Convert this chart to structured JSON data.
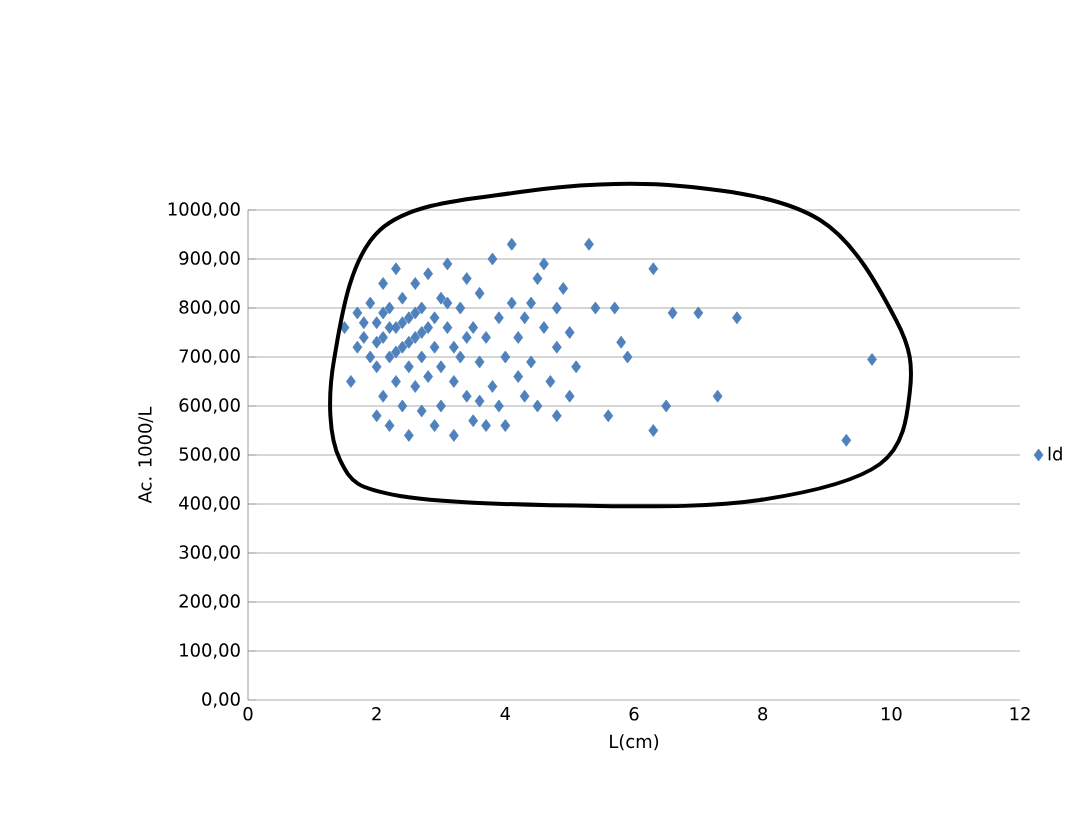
{
  "chart_data": {
    "type": "scatter",
    "xlabel": "L(cm)",
    "ylabel": "Ac. 1000/L",
    "xlim": [
      0,
      12
    ],
    "ylim": [
      0,
      1000
    ],
    "xticks": [
      0,
      2,
      4,
      6,
      8,
      10,
      12
    ],
    "yticks": [
      {
        "value": 0,
        "label": "0,00"
      },
      {
        "value": 100,
        "label": "100,00"
      },
      {
        "value": 200,
        "label": "200,00"
      },
      {
        "value": 300,
        "label": "300,00"
      },
      {
        "value": 400,
        "label": "400,00"
      },
      {
        "value": 500,
        "label": "500,00"
      },
      {
        "value": 600,
        "label": "600,00"
      },
      {
        "value": 700,
        "label": "700,00"
      },
      {
        "value": 800,
        "label": "800,00"
      },
      {
        "value": 900,
        "label": "900,00"
      },
      {
        "value": 1000,
        "label": "1000,00"
      }
    ],
    "grid": "y",
    "legend": "right",
    "marker": "diamond",
    "series": [
      {
        "name": "ld",
        "color": "#4f81bd",
        "x": [
          9.7,
          9.3,
          7.6,
          7.3,
          7.0,
          6.6,
          6.5,
          6.3,
          6.3,
          5.9,
          5.8,
          5.7,
          5.6,
          5.3,
          5.4,
          5.1,
          5.0,
          5.0,
          4.9,
          4.8,
          1.5,
          1.6,
          1.7,
          1.7,
          1.8,
          1.9,
          1.9,
          2.0,
          2.0,
          2.0,
          2.1,
          2.1,
          2.1,
          2.2,
          2.2,
          2.2,
          2.3,
          2.3,
          2.3,
          2.4,
          2.4,
          2.4,
          2.5,
          2.5,
          2.5,
          2.6,
          2.6,
          2.6,
          2.7,
          2.7,
          2.7,
          2.8,
          2.8,
          2.8,
          2.9,
          2.9,
          3.0,
          3.0,
          3.0,
          3.1,
          3.1,
          3.2,
          3.2,
          3.2,
          3.3,
          3.3,
          3.4,
          3.4,
          3.5,
          3.5,
          3.6,
          3.6,
          3.7,
          3.7,
          3.8,
          3.8,
          3.9,
          3.9,
          4.0,
          4.0,
          4.1,
          4.1,
          4.2,
          4.2,
          4.3,
          4.3,
          4.4,
          4.5,
          4.5,
          4.6,
          4.6,
          4.7,
          4.8,
          4.8,
          2.0,
          2.2,
          2.4,
          2.6,
          2.3,
          2.5,
          2.7,
          2.9,
          3.1,
          1.8,
          2.1,
          3.4,
          3.6,
          4.4
        ],
        "values": [
          695,
          530,
          780,
          620,
          790,
          790,
          600,
          550,
          880,
          700,
          730,
          800,
          580,
          930,
          800,
          680,
          620,
          750,
          840,
          800,
          760,
          650,
          720,
          790,
          740,
          810,
          700,
          770,
          680,
          580,
          850,
          740,
          620,
          800,
          700,
          560,
          760,
          650,
          880,
          720,
          820,
          600,
          780,
          680,
          540,
          850,
          740,
          640,
          800,
          700,
          590,
          760,
          870,
          660,
          720,
          560,
          820,
          680,
          600,
          760,
          890,
          720,
          540,
          650,
          800,
          700,
          860,
          620,
          760,
          570,
          690,
          830,
          740,
          560,
          640,
          900,
          780,
          600,
          700,
          560,
          930,
          810,
          660,
          740,
          620,
          780,
          690,
          860,
          600,
          760,
          890,
          650,
          720,
          580,
          730,
          760,
          770,
          790,
          710,
          730,
          750,
          780,
          810,
          770,
          790,
          740,
          610,
          810
        ]
      }
    ]
  }
}
